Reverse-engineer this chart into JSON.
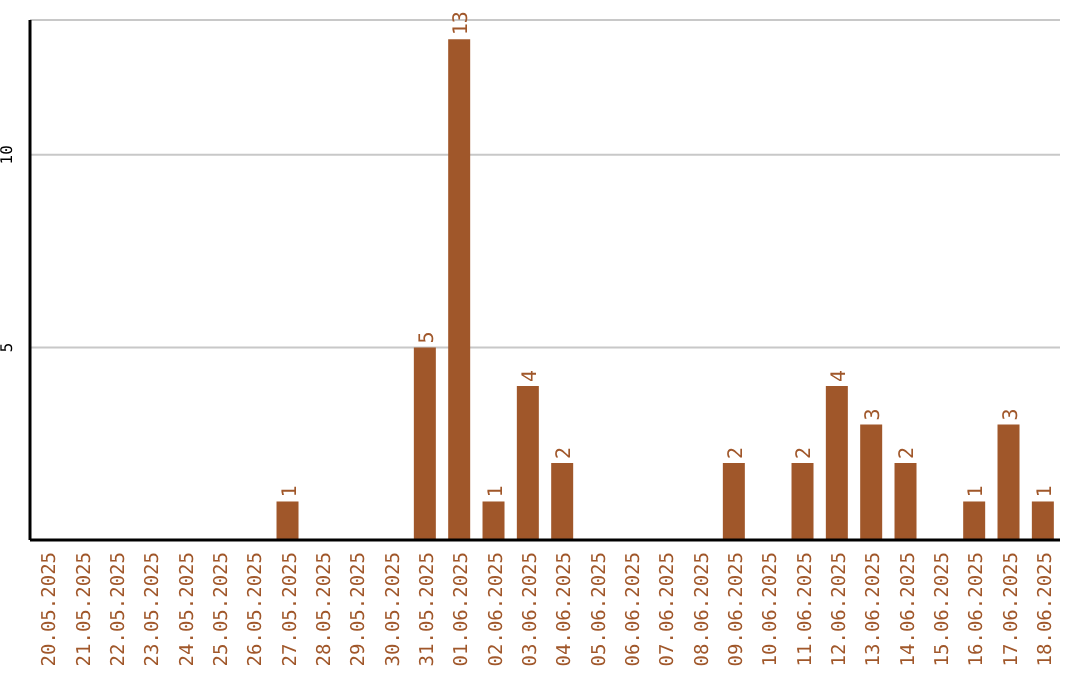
{
  "chart_data": {
    "type": "bar",
    "categories": [
      "20.05.2025",
      "21.05.2025",
      "22.05.2025",
      "23.05.2025",
      "24.05.2025",
      "25.05.2025",
      "26.05.2025",
      "27.05.2025",
      "28.05.2025",
      "29.05.2025",
      "30.05.2025",
      "31.05.2025",
      "01.06.2025",
      "02.06.2025",
      "03.06.2025",
      "04.06.2025",
      "05.06.2025",
      "06.06.2025",
      "07.06.2025",
      "08.06.2025",
      "09.06.2025",
      "10.06.2025",
      "11.06.2025",
      "12.06.2025",
      "13.06.2025",
      "14.06.2025",
      "15.06.2025",
      "16.06.2025",
      "17.06.2025",
      "18.06.2025"
    ],
    "values": [
      0,
      0,
      0,
      0,
      0,
      0,
      0,
      1,
      0,
      0,
      0,
      5,
      13,
      1,
      4,
      2,
      0,
      0,
      0,
      0,
      2,
      0,
      2,
      4,
      3,
      2,
      0,
      1,
      3,
      1
    ],
    "value_labels": [
      null,
      null,
      null,
      null,
      null,
      null,
      null,
      "1",
      null,
      null,
      null,
      "5",
      "13",
      "1",
      "4",
      "2",
      null,
      null,
      null,
      null,
      "2",
      null,
      "2",
      "4",
      "3",
      "2",
      null,
      "1",
      "3",
      "1"
    ],
    "color": "#a0572a",
    "ylim": [
      0,
      13.5
    ],
    "yticks": [
      5,
      10
    ],
    "grid": "y"
  }
}
